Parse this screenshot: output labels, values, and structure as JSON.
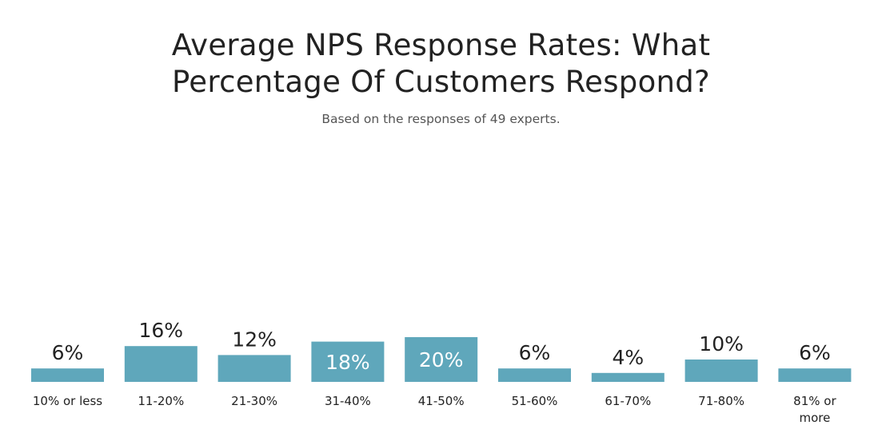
{
  "title_lines": [
    "Average NPS Response Rates: What",
    "Percentage Of Customers Respond?"
  ],
  "subtitle": "Based on the responses of 49 experts.",
  "chart_data": {
    "type": "bar",
    "title": "Average NPS Response Rates: What Percentage Of Customers Respond?",
    "subtitle": "Based on the responses of 49 experts.",
    "categories": [
      "10% or less",
      "11-20%",
      "21-30%",
      "31-40%",
      "41-50%",
      "51-60%",
      "61-70%",
      "71-80%",
      "81% or more"
    ],
    "category_label_lines": [
      [
        "10% or less"
      ],
      [
        "11-20%"
      ],
      [
        "21-30%"
      ],
      [
        "31-40%"
      ],
      [
        "41-50%"
      ],
      [
        "51-60%"
      ],
      [
        "61-70%"
      ],
      [
        "71-80%"
      ],
      [
        "81% or",
        "more"
      ]
    ],
    "values": [
      6,
      16,
      12,
      18,
      20,
      6,
      4,
      10,
      6
    ],
    "value_labels": [
      "6%",
      "16%",
      "12%",
      "18%",
      "20%",
      "6%",
      "4%",
      "10%",
      "6%"
    ],
    "xlabel": "",
    "ylabel": "",
    "ylim": [
      0,
      20
    ],
    "grid": false,
    "legend": "none",
    "bar_color": "#5fa7bb",
    "label_color": "#222222",
    "inside_label_color": "#ffffff"
  }
}
